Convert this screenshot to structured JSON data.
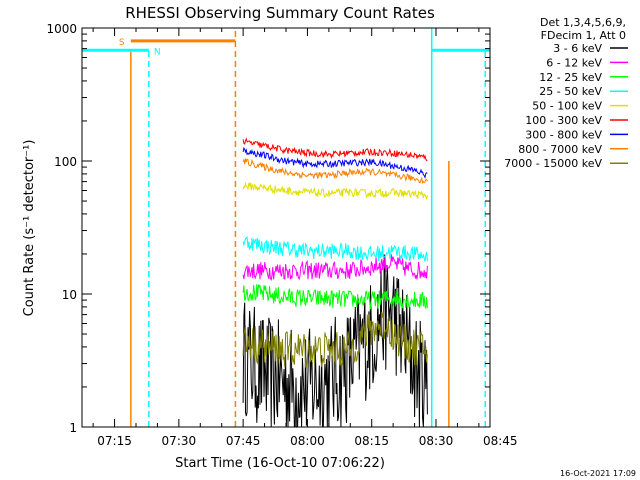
{
  "chart_data": {
    "type": "line",
    "title": "RHESSI Observing Summary Count Rates",
    "xlabel": "Start Time (16-Oct-10 07:06:22)",
    "ylabel": "Count Rate (s⁻¹ detector⁻¹)",
    "yscale": "log",
    "ylim": [
      1,
      1000
    ],
    "xlim_minutes": [
      7.4,
      102.6
    ],
    "x_ticks": [
      {
        "label": "07:15",
        "t": 15
      },
      {
        "label": "07:30",
        "t": 30
      },
      {
        "label": "07:45",
        "t": 45
      },
      {
        "label": "08:00",
        "t": 60
      },
      {
        "label": "08:15",
        "t": 75
      },
      {
        "label": "08:30",
        "t": 90
      },
      {
        "label": "08:45",
        "t": 105
      }
    ],
    "y_ticks": [
      {
        "label": "1",
        "v": 1
      },
      {
        "label": "10",
        "v": 10
      },
      {
        "label": "100",
        "v": 100
      },
      {
        "label": "1000",
        "v": 1000
      }
    ],
    "grid": false,
    "legend": {
      "position": "right",
      "header": [
        "Det 1,3,4,5,6,9,",
        "FDecim 1, Att 0"
      ]
    },
    "series": [
      {
        "name": "3 - 6 keV",
        "color": "#000000",
        "x": [
          45,
          50,
          55,
          60,
          65,
          70,
          72,
          75,
          77,
          80,
          82,
          84,
          86,
          88
        ],
        "y": [
          3.5,
          2.5,
          2.2,
          2.0,
          2.3,
          3.0,
          4.0,
          4.8,
          7.0,
          7.5,
          5.0,
          3.5,
          2.5,
          1.8
        ],
        "noise": 0.45
      },
      {
        "name": "6 - 12 keV",
        "color": "#ff00ff",
        "x": [
          45,
          50,
          55,
          60,
          65,
          70,
          75,
          78,
          80,
          82,
          85,
          88
        ],
        "y": [
          15,
          15,
          15,
          15,
          15,
          15,
          16,
          17,
          17,
          16,
          15,
          15
        ],
        "noise": 0.07
      },
      {
        "name": "12 - 25 keV",
        "color": "#00ff00",
        "x": [
          45,
          50,
          55,
          60,
          65,
          70,
          75,
          80,
          85,
          88
        ],
        "y": [
          10.5,
          10,
          9.5,
          9.3,
          9.2,
          9.1,
          9.0,
          9.3,
          9.0,
          8.8
        ],
        "noise": 0.07
      },
      {
        "name": "25 - 50 keV",
        "color": "#00ffff",
        "x": [
          45,
          50,
          55,
          60,
          65,
          70,
          75,
          80,
          85,
          88
        ],
        "y": [
          25,
          23,
          22,
          21,
          21,
          21,
          20,
          21,
          20,
          19
        ],
        "noise": 0.06
      },
      {
        "name": "50 - 100 keV",
        "color": "#e0e000",
        "x": [
          45,
          50,
          55,
          60,
          65,
          70,
          75,
          80,
          85,
          88
        ],
        "y": [
          65,
          63,
          60,
          58,
          57,
          58,
          57,
          58,
          56,
          55
        ],
        "noise": 0.03
      },
      {
        "name": "100 - 300 keV",
        "color": "#ff0000",
        "x": [
          45,
          50,
          55,
          60,
          65,
          70,
          75,
          80,
          85,
          88
        ],
        "y": [
          140,
          130,
          120,
          115,
          112,
          115,
          117,
          115,
          110,
          105
        ],
        "noise": 0.025
      },
      {
        "name": "300 - 800 keV",
        "color": "#0000ff",
        "x": [
          45,
          50,
          55,
          60,
          65,
          70,
          75,
          80,
          85,
          88
        ],
        "y": [
          120,
          110,
          100,
          95,
          95,
          97,
          98,
          92,
          85,
          78
        ],
        "noise": 0.025
      },
      {
        "name": "800 - 7000 keV",
        "color": "#ff8000",
        "x": [
          45,
          50,
          55,
          60,
          65,
          70,
          75,
          80,
          85,
          88
        ],
        "y": [
          100,
          90,
          82,
          78,
          78,
          82,
          83,
          78,
          74,
          70
        ],
        "noise": 0.025
      },
      {
        "name": "7000 - 15000 keV",
        "color": "#808000",
        "x": [
          45,
          50,
          55,
          60,
          65,
          70,
          72,
          75,
          78,
          80,
          83,
          85,
          88
        ],
        "y": [
          4.5,
          4.0,
          3.8,
          3.8,
          3.8,
          3.8,
          4.5,
          5.5,
          6.0,
          5.0,
          4.2,
          4.0,
          3.8
        ],
        "noise": 0.14
      }
    ],
    "flags": [
      {
        "label": "S",
        "color": "#ff8000",
        "range": [
          18.8,
          43.2
        ],
        "level": 800
      },
      {
        "label": "N",
        "color": "#00ffff",
        "range": [
          7.4,
          23.0
        ],
        "level": 680
      },
      {
        "label": "",
        "color": "#00ffff",
        "range": [
          89.0,
          102.6
        ],
        "level": 680
      }
    ],
    "markers": [
      {
        "color": "#ff8000",
        "style": "solid",
        "t": 18.8,
        "bottom": 1,
        "top": 680
      },
      {
        "color": "#00ffff",
        "style": "dashed",
        "t": 23.0,
        "bottom": 1,
        "top": 680
      },
      {
        "color": "#ff8000",
        "style": "dashed",
        "t": 43.2,
        "bottom": 1,
        "top": 1000
      },
      {
        "color": "#00ffff",
        "style": "solid",
        "t": 89.0,
        "bottom": 1,
        "top": 1000
      },
      {
        "color": "#ff8000",
        "style": "solid",
        "t": 93.0,
        "bottom": 1,
        "top": 100
      },
      {
        "color": "#00ffff",
        "style": "dashed",
        "t": 101.5,
        "bottom": 1,
        "top": 680
      }
    ],
    "timestamp": "16-Oct-2021 17:09"
  }
}
